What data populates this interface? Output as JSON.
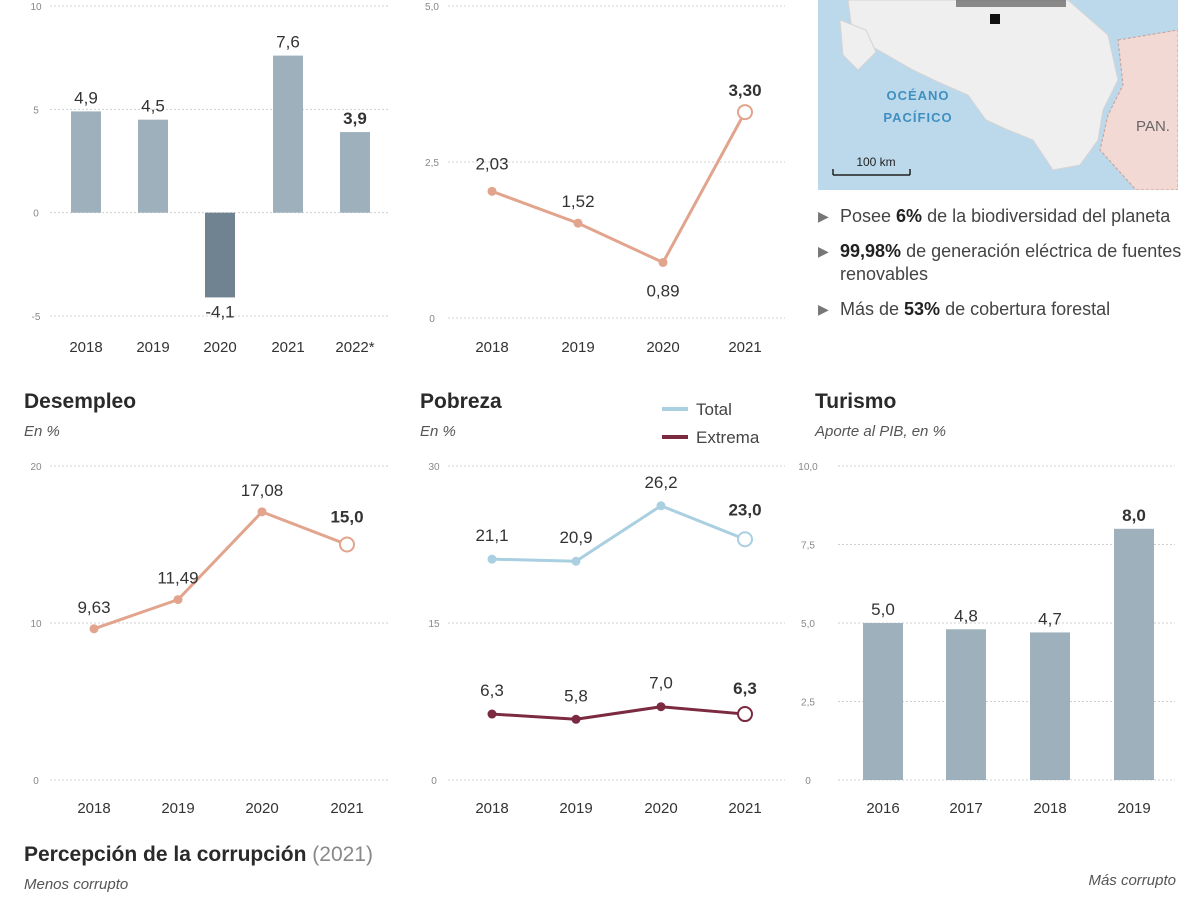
{
  "chart_data": [
    {
      "id": "gdp",
      "type": "bar",
      "title": "",
      "categories": [
        "2018",
        "2019",
        "2020",
        "2021",
        "2022*"
      ],
      "values": [
        4.9,
        4.5,
        -4.1,
        7.6,
        3.9
      ],
      "labels": [
        "4,9",
        "4,5",
        "-4,1",
        "7,6",
        "3,9"
      ],
      "bold_last": true,
      "ylim": [
        -5,
        10
      ],
      "yticks": [
        10,
        5,
        0,
        -5
      ],
      "ytick_labels": [
        "10",
        "5",
        "0",
        "-5"
      ],
      "colors": {
        "positive": "#9db0bc",
        "negative": "#6f8390"
      }
    },
    {
      "id": "inflation",
      "type": "line",
      "title": "",
      "categories": [
        "2018",
        "2019",
        "2020",
        "2021"
      ],
      "values": [
        2.03,
        1.52,
        0.89,
        3.3
      ],
      "labels": [
        "2,03",
        "1,52",
        "0,89",
        "3,30"
      ],
      "ylim": [
        0,
        5
      ],
      "yticks": [
        5,
        2.5,
        0
      ],
      "ytick_labels": [
        "5,0",
        "2,5",
        "0"
      ],
      "color": "#e2a48c"
    },
    {
      "id": "unemployment",
      "type": "line",
      "title": "Desempleo",
      "subtitle": "En %",
      "categories": [
        "2018",
        "2019",
        "2020",
        "2021"
      ],
      "values": [
        9.63,
        11.49,
        17.08,
        15.0
      ],
      "labels": [
        "9,63",
        "11,49",
        "17,08",
        "15,0"
      ],
      "ylim": [
        0,
        20
      ],
      "yticks": [
        20,
        10,
        0
      ],
      "ytick_labels": [
        "20",
        "10",
        "0"
      ],
      "color": "#e2a48c"
    },
    {
      "id": "poverty",
      "type": "line",
      "title": "Pobreza",
      "subtitle": "En %",
      "categories": [
        "2018",
        "2019",
        "2020",
        "2021"
      ],
      "series": [
        {
          "name": "Total",
          "values": [
            21.1,
            20.9,
            26.2,
            23.0
          ],
          "labels": [
            "21,1",
            "20,9",
            "26,2",
            "23,0"
          ],
          "color": "#a9cfe0"
        },
        {
          "name": "Extrema",
          "values": [
            6.3,
            5.8,
            7.0,
            6.3
          ],
          "labels": [
            "6,3",
            "5,8",
            "7,0",
            "6,3"
          ],
          "color": "#7b2a3f"
        }
      ],
      "ylim": [
        0,
        30
      ],
      "yticks": [
        30,
        15,
        0
      ],
      "ytick_labels": [
        "30",
        "15",
        "0"
      ]
    },
    {
      "id": "tourism",
      "type": "bar",
      "title": "Turismo",
      "subtitle": "Aporte al PIB, en %",
      "categories": [
        "2016",
        "2017",
        "2018",
        "2019"
      ],
      "values": [
        5.0,
        4.8,
        4.7,
        8.0
      ],
      "labels": [
        "5,0",
        "4,8",
        "4,7",
        "8,0"
      ],
      "bold_last": true,
      "ylim": [
        0,
        10
      ],
      "yticks": [
        10,
        7.5,
        5,
        2.5,
        0
      ],
      "ytick_labels": [
        "10,0",
        "7,5",
        "5,0",
        "2,5",
        "0"
      ],
      "colors": {
        "positive": "#9db0bc",
        "negative": "#6f8390"
      }
    }
  ],
  "map": {
    "ocean_label_1": "OCÉANO",
    "ocean_label_2": "PACÍFICO",
    "country_label": "PAN.",
    "scale_label": "100 km",
    "colors": {
      "water": "#bcd9ec",
      "land": "#efefef",
      "neighbor": "#f3d9d3",
      "border": "#c9a7a0"
    }
  },
  "facts": [
    {
      "before": "Posee ",
      "bold": "6%",
      "after": " de la biodiversidad del planeta"
    },
    {
      "before": "",
      "bold": "99,98%",
      "after": " de generación eléctrica de fuentes renovables"
    },
    {
      "before": "Más de ",
      "bold": "53%",
      "after": " de cobertura forestal"
    }
  ],
  "corruption": {
    "title": "Percepción de la corrupción",
    "year": "(2021)",
    "less_label": "Menos corrupto",
    "more_label": "Más corrupto"
  }
}
